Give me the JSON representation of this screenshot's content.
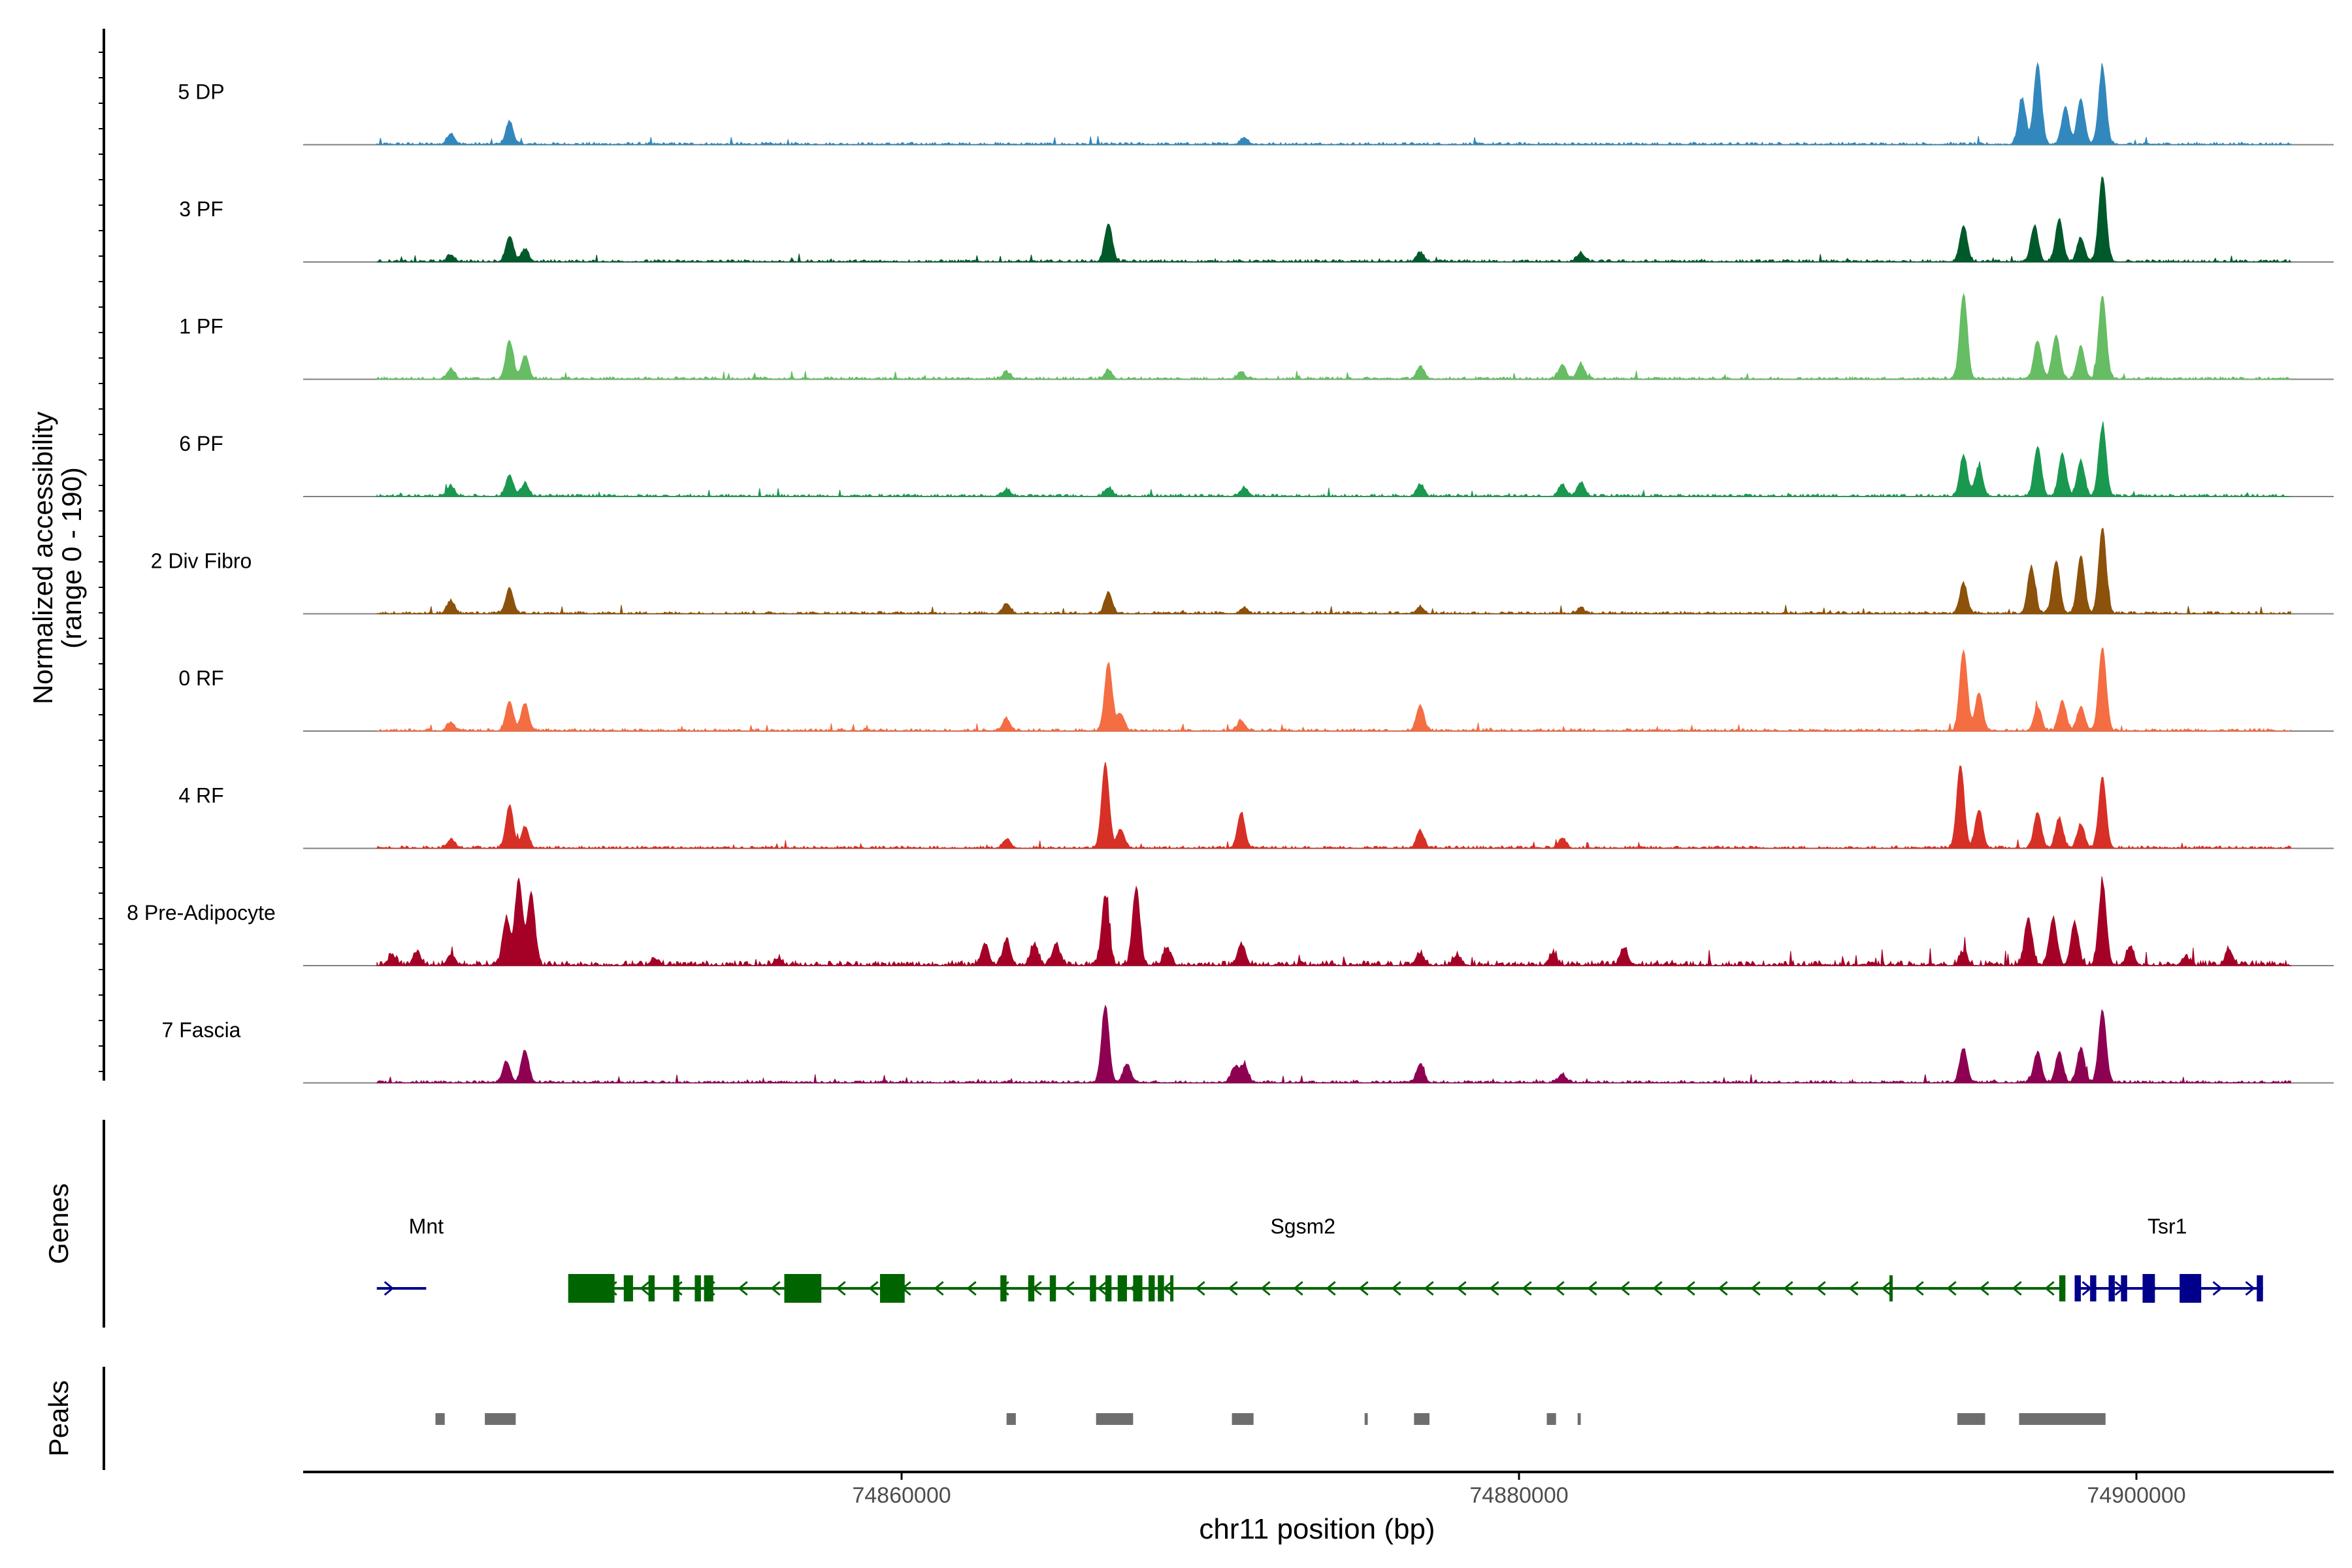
{
  "chart_data": {
    "type": "area",
    "title": "",
    "ylabel_line1": "Normalized accessibility",
    "ylabel_line2": "(range 0 - 190)",
    "xlabel": "chr11 position (bp)",
    "xlim": [
      74841000,
      74907000
    ],
    "ylim": [
      0,
      190
    ],
    "x_ticks": [
      74860000,
      74880000,
      74900000
    ],
    "x_tick_labels": [
      "74860000",
      "74880000",
      "74900000"
    ],
    "genes_label": "Genes",
    "peaks_label": "Peaks",
    "tracks": [
      {
        "name": "5 DP",
        "color": "#3288bd",
        "noise": 0.03,
        "peaks": [
          [
            74845400,
            0.13
          ],
          [
            74847300,
            0.27
          ],
          [
            74871100,
            0.08
          ],
          [
            74896300,
            0.54
          ],
          [
            74896800,
            0.95
          ],
          [
            74897700,
            0.43
          ],
          [
            74898200,
            0.53
          ],
          [
            74898900,
            0.9
          ]
        ]
      },
      {
        "name": "3 PF",
        "color": "#00592b",
        "noise": 0.03,
        "peaks": [
          [
            74845400,
            0.08
          ],
          [
            74847300,
            0.3
          ],
          [
            74847800,
            0.14
          ],
          [
            74866700,
            0.45
          ],
          [
            74876800,
            0.1
          ],
          [
            74882000,
            0.1
          ],
          [
            74894400,
            0.42
          ],
          [
            74896700,
            0.42
          ],
          [
            74897500,
            0.5
          ],
          [
            74898200,
            0.28
          ],
          [
            74898900,
            1.0
          ]
        ]
      },
      {
        "name": "1 PF",
        "color": "#66bd63",
        "noise": 0.03,
        "peaks": [
          [
            74845400,
            0.12
          ],
          [
            74847300,
            0.45
          ],
          [
            74847800,
            0.27
          ],
          [
            74863400,
            0.08
          ],
          [
            74866700,
            0.1
          ],
          [
            74871000,
            0.08
          ],
          [
            74876800,
            0.14
          ],
          [
            74881400,
            0.17
          ],
          [
            74882000,
            0.18
          ],
          [
            74894400,
            1.0
          ],
          [
            74896800,
            0.45
          ],
          [
            74897400,
            0.52
          ],
          [
            74898200,
            0.38
          ],
          [
            74898900,
            0.98
          ]
        ]
      },
      {
        "name": "6 PF",
        "color": "#1a9850",
        "noise": 0.03,
        "peaks": [
          [
            74845400,
            0.12
          ],
          [
            74847300,
            0.25
          ],
          [
            74847800,
            0.15
          ],
          [
            74863400,
            0.08
          ],
          [
            74866700,
            0.1
          ],
          [
            74871100,
            0.1
          ],
          [
            74876800,
            0.14
          ],
          [
            74881400,
            0.14
          ],
          [
            74882000,
            0.16
          ],
          [
            74894400,
            0.48
          ],
          [
            74894900,
            0.35
          ],
          [
            74896800,
            0.58
          ],
          [
            74897600,
            0.5
          ],
          [
            74898200,
            0.42
          ],
          [
            74898900,
            0.82
          ]
        ]
      },
      {
        "name": "2 Div Fibro",
        "color": "#8c510a",
        "noise": 0.03,
        "peaks": [
          [
            74845400,
            0.15
          ],
          [
            74847300,
            0.3
          ],
          [
            74863400,
            0.12
          ],
          [
            74866700,
            0.25
          ],
          [
            74871100,
            0.07
          ],
          [
            74876800,
            0.08
          ],
          [
            74882000,
            0.06
          ],
          [
            74894400,
            0.35
          ],
          [
            74896600,
            0.55
          ],
          [
            74897400,
            0.62
          ],
          [
            74898200,
            0.68
          ],
          [
            74898900,
            1.0
          ]
        ]
      },
      {
        "name": "0 RF",
        "color": "#f46d43",
        "noise": 0.03,
        "peaks": [
          [
            74845400,
            0.1
          ],
          [
            74847300,
            0.35
          ],
          [
            74847800,
            0.32
          ],
          [
            74863400,
            0.14
          ],
          [
            74866700,
            0.8
          ],
          [
            74867100,
            0.2
          ],
          [
            74871000,
            0.12
          ],
          [
            74876800,
            0.3
          ],
          [
            74894400,
            0.95
          ],
          [
            74894900,
            0.45
          ],
          [
            74896800,
            0.28
          ],
          [
            74897600,
            0.35
          ],
          [
            74898200,
            0.28
          ],
          [
            74898900,
            0.98
          ]
        ]
      },
      {
        "name": "4 RF",
        "color": "#d73027",
        "noise": 0.03,
        "peaks": [
          [
            74845400,
            0.1
          ],
          [
            74847300,
            0.5
          ],
          [
            74847800,
            0.25
          ],
          [
            74863400,
            0.1
          ],
          [
            74866600,
            1.0
          ],
          [
            74867100,
            0.22
          ],
          [
            74871000,
            0.42
          ],
          [
            74876800,
            0.2
          ],
          [
            74881400,
            0.12
          ],
          [
            74894300,
            0.98
          ],
          [
            74894900,
            0.45
          ],
          [
            74896800,
            0.42
          ],
          [
            74897500,
            0.35
          ],
          [
            74898200,
            0.28
          ],
          [
            74898900,
            0.82
          ]
        ]
      },
      {
        "name": "8 Pre-Adipocyte",
        "color": "#a50026",
        "noise": 0.06,
        "peaks": [
          [
            74843500,
            0.12
          ],
          [
            74844300,
            0.15
          ],
          [
            74845400,
            0.12
          ],
          [
            74847200,
            0.55
          ],
          [
            74847600,
            1.0
          ],
          [
            74848000,
            0.85
          ],
          [
            74852000,
            0.08
          ],
          [
            74856000,
            0.08
          ],
          [
            74862700,
            0.25
          ],
          [
            74863400,
            0.3
          ],
          [
            74864300,
            0.25
          ],
          [
            74865000,
            0.25
          ],
          [
            74866600,
            0.8
          ],
          [
            74867600,
            0.9
          ],
          [
            74868600,
            0.2
          ],
          [
            74871000,
            0.25
          ],
          [
            74876800,
            0.14
          ],
          [
            74878000,
            0.12
          ],
          [
            74881100,
            0.14
          ],
          [
            74883400,
            0.2
          ],
          [
            74894400,
            0.15
          ],
          [
            74896500,
            0.55
          ],
          [
            74897300,
            0.55
          ],
          [
            74898000,
            0.5
          ],
          [
            74898900,
            0.95
          ],
          [
            74899800,
            0.22
          ],
          [
            74901600,
            0.1
          ],
          [
            74903000,
            0.18
          ]
        ]
      },
      {
        "name": "7 Fascia",
        "color": "#8e0152",
        "noise": 0.03,
        "peaks": [
          [
            74847200,
            0.25
          ],
          [
            74847800,
            0.38
          ],
          [
            74866600,
            0.9
          ],
          [
            74867300,
            0.22
          ],
          [
            74870800,
            0.18
          ],
          [
            74871100,
            0.2
          ],
          [
            74876800,
            0.22
          ],
          [
            74881400,
            0.1
          ],
          [
            74894400,
            0.4
          ],
          [
            74896800,
            0.35
          ],
          [
            74897500,
            0.35
          ],
          [
            74898200,
            0.4
          ],
          [
            74898900,
            0.85
          ]
        ]
      }
    ],
    "genes": [
      {
        "name": "Mnt",
        "color": "#00008b",
        "strand": "+",
        "start": 74843000,
        "end": 74844600,
        "label_x": 74844600,
        "exons": []
      },
      {
        "name": "Sgsm2",
        "color": "#006400",
        "strand": "-",
        "start": 74849200,
        "end": 74897700,
        "label_x": 74873000,
        "exons": [
          [
            74849200,
            74850700
          ],
          [
            74851000,
            74851300
          ],
          [
            74851800,
            74852000
          ],
          [
            74852600,
            74852800
          ],
          [
            74853300,
            74853500
          ],
          [
            74853600,
            74853900
          ],
          [
            74856200,
            74857400
          ],
          [
            74859300,
            74860100
          ],
          [
            74863200,
            74863400
          ],
          [
            74864100,
            74864300
          ],
          [
            74864800,
            74865000
          ],
          [
            74866100,
            74866300
          ],
          [
            74866600,
            74866800
          ],
          [
            74867000,
            74867300
          ],
          [
            74867500,
            74867800
          ],
          [
            74868000,
            74868200
          ],
          [
            74868300,
            74868500
          ],
          [
            74868700,
            74868800
          ],
          [
            74892000,
            74892100
          ],
          [
            74897500,
            74897700
          ]
        ]
      },
      {
        "name": "Tsr1",
        "color": "#00008b",
        "strand": "+",
        "start": 74898000,
        "end": 74904100,
        "label_x": 74901000,
        "exons": [
          [
            74898000,
            74898200
          ],
          [
            74898500,
            74898700
          ],
          [
            74899100,
            74899300
          ],
          [
            74899500,
            74899700
          ],
          [
            74900200,
            74900600
          ],
          [
            74901400,
            74902100
          ],
          [
            74903900,
            74904100
          ]
        ]
      }
    ],
    "peak_regions": [
      [
        74844900,
        74845200
      ],
      [
        74846500,
        74847500
      ],
      [
        74863400,
        74863700
      ],
      [
        74866300,
        74867500
      ],
      [
        74870700,
        74871400
      ],
      [
        74875000,
        74875100
      ],
      [
        74876600,
        74877100
      ],
      [
        74880900,
        74881200
      ],
      [
        74881900,
        74882000
      ],
      [
        74894200,
        74895100
      ],
      [
        74896200,
        74899000
      ]
    ]
  }
}
